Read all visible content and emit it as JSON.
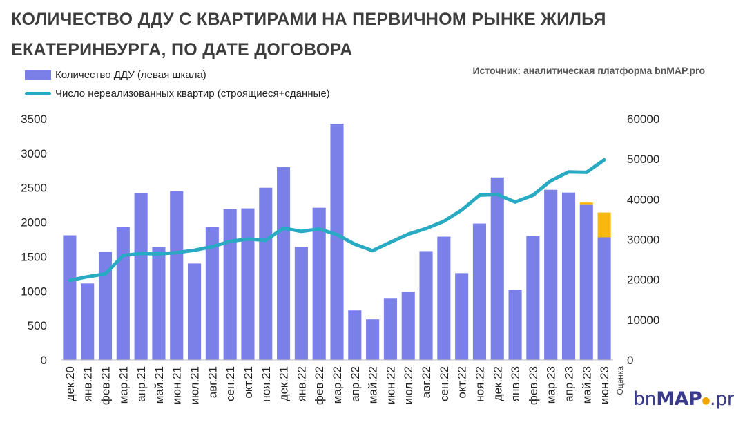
{
  "title": "КОЛИЧЕСТВО ДДУ С КВАРТИРАМИ НА ПЕРВИЧНОМ РЫНКЕ ЖИЛЬЯ ЕКАТЕРИНБУРГА, ПО ДАТЕ ДОГОВОРА",
  "source": "Источник: аналитическая платформа bnMAP.pro",
  "logo": {
    "prefix": "bn",
    "main": "MAP",
    "suffix": ".pro"
  },
  "colors": {
    "bars": "#7b7fe8",
    "line": "#27aac2",
    "estimate": "#f9b80d"
  },
  "chart_data": {
    "type": "bar",
    "title": "КОЛИЧЕСТВО ДДУ С КВАРТИРАМИ НА ПЕРВИЧНОМ РЫНКЕ ЖИЛЬЯ ЕКАТЕРИНБУРГА, ПО ДАТЕ ДОГОВОРА",
    "categories": [
      "дек.20",
      "янв.21",
      "фев.21",
      "мар.21",
      "апр.21",
      "май.21",
      "июн.21",
      "июл.21",
      "авг.21",
      "сен.21",
      "окт.21",
      "ноя.21",
      "дек.21",
      "янв.22",
      "фев.22",
      "мар.22",
      "апр.22",
      "май.22",
      "июн.22",
      "июл.22",
      "авг.22",
      "сен.22",
      "окт.22",
      "ноя.22",
      "дек.22",
      "янв.23",
      "фев.23",
      "мар.23",
      "апр.23",
      "май.23",
      "июн.23"
    ],
    "estimate_note": "Оценка",
    "series": [
      {
        "name": "Количество ДДУ (левая шкала)",
        "type": "bar",
        "axis": "left",
        "values": [
          1810,
          1110,
          1570,
          1930,
          2420,
          1640,
          2450,
          1400,
          1930,
          2190,
          2200,
          2500,
          2800,
          1640,
          2210,
          3430,
          720,
          590,
          890,
          990,
          1580,
          1790,
          1260,
          1980,
          2650,
          1020,
          1800,
          2470,
          2430,
          2260,
          1780
        ]
      },
      {
        "name": "Оценка",
        "type": "bar-stack",
        "axis": "left",
        "values": [
          0,
          0,
          0,
          0,
          0,
          0,
          0,
          0,
          0,
          0,
          0,
          0,
          0,
          0,
          0,
          0,
          0,
          0,
          0,
          0,
          0,
          0,
          0,
          0,
          0,
          0,
          0,
          0,
          0,
          25,
          360
        ]
      },
      {
        "name": "Число нереализованных квартир (строящиеся+сданные)",
        "type": "line",
        "axis": "right",
        "values": [
          19800,
          20700,
          21400,
          26000,
          26500,
          26400,
          26700,
          27300,
          28200,
          29500,
          30100,
          29800,
          32800,
          32000,
          32600,
          31200,
          28800,
          27200,
          29300,
          31300,
          32700,
          34500,
          37300,
          41000,
          41200,
          39300,
          41000,
          44600,
          46800,
          46700,
          49800
        ]
      }
    ],
    "ylim_left": [
      0,
      3500
    ],
    "yticks_left": [
      0,
      500,
      1000,
      1500,
      2000,
      2500,
      3000,
      3500
    ],
    "ylim_right": [
      0,
      60000
    ],
    "yticks_right": [
      0,
      10000,
      20000,
      30000,
      40000,
      50000,
      60000
    ],
    "grid": false,
    "legend_position": "top-left"
  }
}
